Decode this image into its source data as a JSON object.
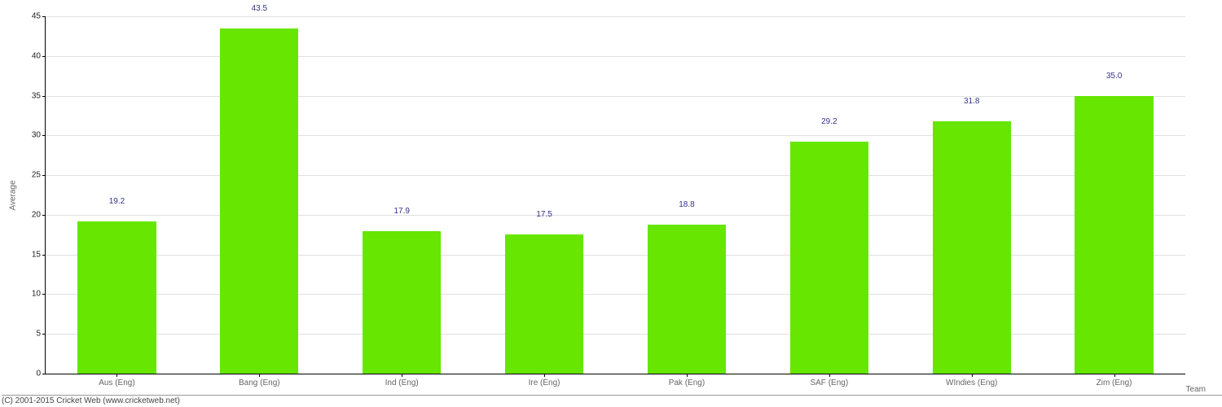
{
  "chart": {
    "type": "bar",
    "categories": [
      "Aus (Eng)",
      "Bang (Eng)",
      "Ind (Eng)",
      "Ire (Eng)",
      "Pak (Eng)",
      "SAF (Eng)",
      "WIndies (Eng)",
      "Zim (Eng)"
    ],
    "values": [
      19.2,
      43.5,
      17.9,
      17.5,
      18.8,
      29.2,
      31.8,
      35.0
    ],
    "value_labels": [
      "19.2",
      "43.5",
      "17.9",
      "17.5",
      "18.8",
      "29.2",
      "31.8",
      "35.0"
    ],
    "bar_color": "#66e600",
    "value_label_color": "#33338b",
    "ylabel": "Average",
    "xlabel": "Team",
    "ylim": [
      0,
      45
    ],
    "ytick_step": 5,
    "yticks": [
      0,
      5,
      10,
      15,
      20,
      25,
      30,
      35,
      40,
      45
    ],
    "background_color": "#ffffff",
    "grid_color": "#e0e0e0",
    "axis_color": "#000000",
    "tick_label_color": "#666666",
    "bar_width_ratio": 0.55,
    "label_fontsize": 10,
    "value_fontsize": 10,
    "tick_fontsize": 10
  },
  "copyright": "(C) 2001-2015 Cricket Web (www.cricketweb.net)"
}
